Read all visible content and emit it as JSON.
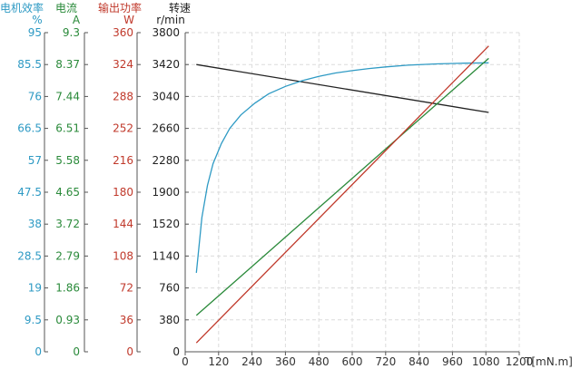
{
  "chart_data": {
    "type": "line",
    "x_axis": {
      "label": "T[mN.m]",
      "ticks": [
        0,
        120,
        240,
        360,
        480,
        600,
        720,
        840,
        960,
        1080,
        1200
      ],
      "range": [
        0,
        1200
      ]
    },
    "y_axes": [
      {
        "id": "efficiency",
        "label": "电机效率",
        "unit": "%",
        "color": "#2e9ac4",
        "ticks": [
          "0",
          "9.5",
          "19",
          "28.5",
          "38",
          "47.5",
          "57",
          "66.5",
          "76",
          "85.5",
          "95"
        ],
        "range": [
          0,
          95
        ]
      },
      {
        "id": "current",
        "label": "电流",
        "unit": "A",
        "color": "#2a8a3a",
        "ticks": [
          "0",
          "0.93",
          "1.86",
          "2.79",
          "3.72",
          "4.65",
          "5.58",
          "6.51",
          "7.44",
          "8.37",
          "9.3"
        ],
        "range": [
          0,
          9.3
        ]
      },
      {
        "id": "power",
        "label": "输出功率",
        "unit": "W",
        "color": "#c0392b",
        "ticks": [
          "0",
          "36",
          "72",
          "108",
          "144",
          "180",
          "216",
          "252",
          "288",
          "324",
          "360"
        ],
        "range": [
          0,
          360
        ]
      },
      {
        "id": "speed",
        "label": "转速",
        "unit": "r/min",
        "color": "#222222",
        "ticks": [
          "0",
          "380",
          "760",
          "1140",
          "1520",
          "1900",
          "2280",
          "2660",
          "3040",
          "3420",
          "3800"
        ],
        "range": [
          0,
          3800
        ]
      }
    ],
    "grid": true,
    "series": [
      {
        "axis": "speed",
        "color": "#222222",
        "points": [
          [
            40,
            3420
          ],
          [
            1090,
            2850
          ]
        ]
      },
      {
        "axis": "efficiency",
        "color": "#2e9ac4",
        "points": [
          [
            40,
            23.5
          ],
          [
            60,
            40
          ],
          [
            80,
            49.5
          ],
          [
            100,
            56
          ],
          [
            130,
            62
          ],
          [
            160,
            66.5
          ],
          [
            200,
            70.5
          ],
          [
            250,
            74
          ],
          [
            300,
            76.8
          ],
          [
            360,
            79
          ],
          [
            420,
            80.7
          ],
          [
            480,
            82
          ],
          [
            540,
            83
          ],
          [
            600,
            83.7
          ],
          [
            660,
            84.3
          ],
          [
            720,
            84.8
          ],
          [
            800,
            85.3
          ],
          [
            900,
            85.7
          ],
          [
            1000,
            85.9
          ],
          [
            1090,
            86
          ]
        ]
      },
      {
        "axis": "current",
        "color": "#2a8a3a",
        "points": [
          [
            40,
            1.06
          ],
          [
            1090,
            8.55
          ]
        ]
      },
      {
        "axis": "power",
        "color": "#c0392b",
        "points": [
          [
            40,
            10
          ],
          [
            1090,
            345
          ]
        ]
      }
    ]
  }
}
